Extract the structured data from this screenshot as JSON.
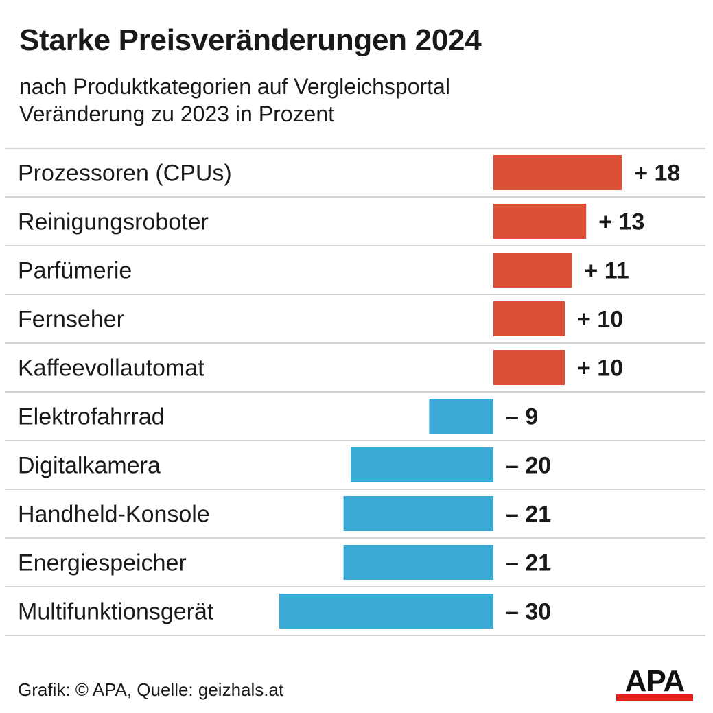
{
  "title": "Starke Preisveränderungen 2024",
  "subtitle_line1": "nach Produktkategorien auf Vergleichsportal",
  "subtitle_line2": "Veränderung zu 2023 in Prozent",
  "footer": "Grafik: © APA, Quelle: geizhals.at",
  "logo_text": "APA",
  "colors": {
    "positive": "#dd4f37",
    "negative": "#3aa9d6",
    "logo_bar": "#e32020"
  },
  "chart_data": {
    "type": "bar",
    "orientation": "horizontal",
    "title": "Starke Preisveränderungen 2024",
    "subtitle": "nach Produktkategorien auf Vergleichsportal / Veränderung zu 2023 in Prozent",
    "categories": [
      "Prozessoren (CPUs)",
      "Reinigungsroboter",
      "Parfümerie",
      "Fernseher",
      "Kaffeevollautomat",
      "Elektrofahrrad",
      "Digitalkamera",
      "Handheld-Konsole",
      "Energiespeicher",
      "Multifunktionsgerät"
    ],
    "values": [
      18,
      13,
      11,
      10,
      10,
      -9,
      -20,
      -21,
      -21,
      -30
    ],
    "value_labels": [
      "+ 18",
      "+ 13",
      "+ 11",
      "+ 10",
      "+ 10",
      "– 9",
      "– 20",
      "– 21",
      "– 21",
      "– 30"
    ],
    "grid": false
  }
}
